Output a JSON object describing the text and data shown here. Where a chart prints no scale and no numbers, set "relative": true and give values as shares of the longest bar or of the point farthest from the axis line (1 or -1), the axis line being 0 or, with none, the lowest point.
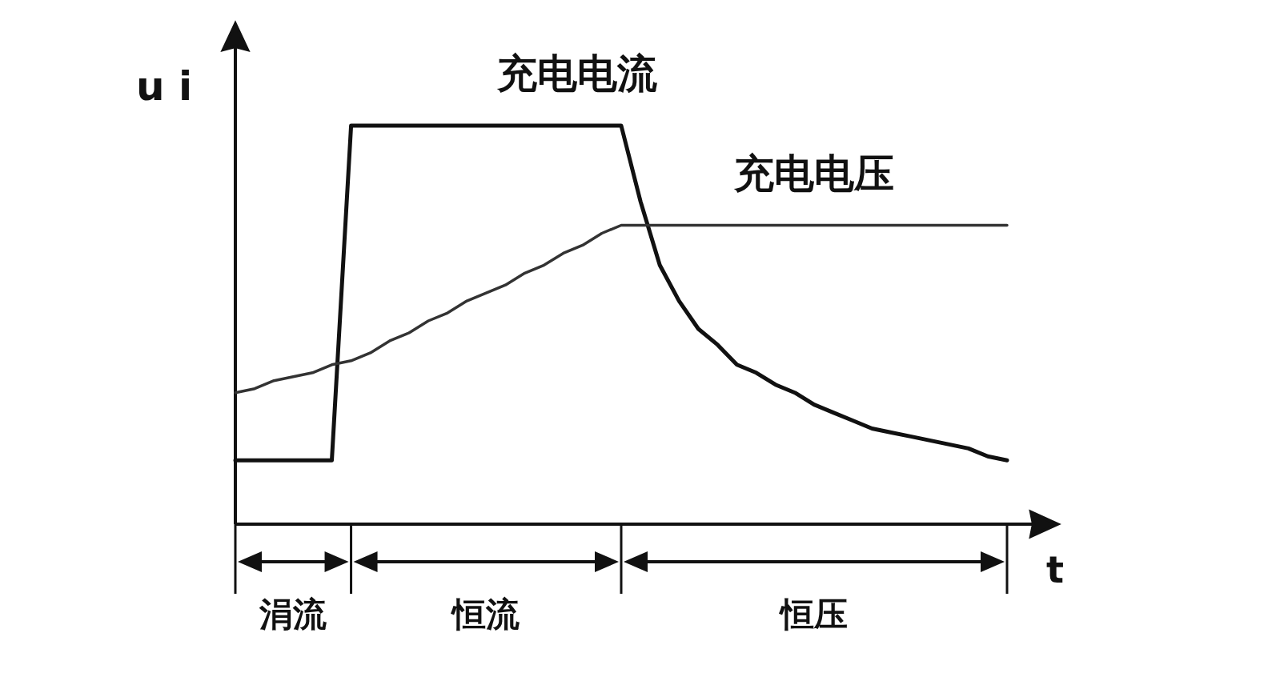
{
  "chart_data": {
    "type": "line",
    "relative": true,
    "xlabel": "t",
    "ylabel": "u i",
    "legend": false,
    "marker": "none",
    "categories": [
      null,
      null,
      null,
      null,
      null,
      null,
      null,
      null,
      null,
      null,
      null,
      null,
      null,
      null,
      null,
      null,
      null,
      null,
      null,
      null,
      null,
      null,
      null,
      null,
      null,
      null,
      null,
      null,
      null,
      null,
      null,
      null,
      null,
      null,
      null,
      null,
      null,
      null,
      null,
      null,
      null
    ],
    "series": [
      {
        "name": "充电电流",
        "color": "#111111",
        "values": [
          0.16,
          0.16,
          0.16,
          0.16,
          0.16,
          0.16,
          1,
          1,
          1,
          1,
          1,
          1,
          1,
          1,
          1,
          1,
          1,
          1,
          1,
          1,
          1,
          0.81,
          0.65,
          0.56,
          0.49,
          0.45,
          0.4,
          0.38,
          0.35,
          0.33,
          0.3,
          0.28,
          0.26,
          0.24,
          0.23,
          0.22,
          0.21,
          0.2,
          0.19,
          0.17,
          0.16
        ]
      },
      {
        "name": "充电电压",
        "color": "#333333",
        "values": [
          0.33,
          0.34,
          0.36,
          0.37,
          0.38,
          0.4,
          0.41,
          0.43,
          0.46,
          0.48,
          0.51,
          0.53,
          0.56,
          0.58,
          0.6,
          0.63,
          0.65,
          0.68,
          0.7,
          0.73,
          0.75,
          0.75,
          0.75,
          0.75,
          0.75,
          0.75,
          0.75,
          0.75,
          0.75,
          0.75,
          0.75,
          0.75,
          0.75,
          0.75,
          0.75,
          0.75,
          0.75,
          0.75,
          0.75,
          0.75,
          0.75
        ]
      }
    ],
    "annotations": [
      "涓流",
      "恒流",
      "恒压"
    ]
  }
}
